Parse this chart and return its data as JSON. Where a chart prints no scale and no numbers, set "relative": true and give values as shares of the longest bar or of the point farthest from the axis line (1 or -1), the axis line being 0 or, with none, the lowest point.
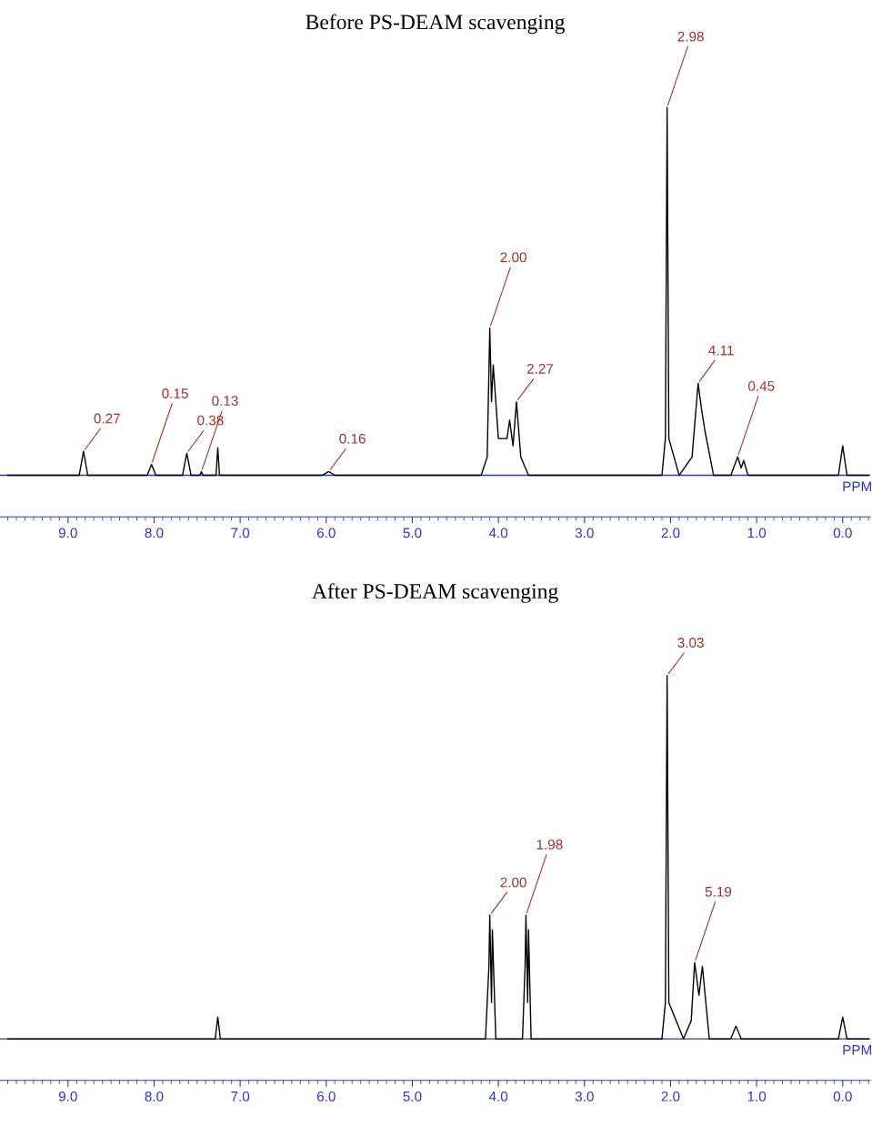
{
  "chart_data": [
    {
      "type": "line",
      "title": "Before PS-DEAM scavenging",
      "xlabel": "PPM",
      "relative": true,
      "xlim": [
        9.79,
        -0.32
      ],
      "xticks": [
        {
          "value": 9,
          "label": "9.0"
        },
        {
          "value": 8,
          "label": "8.0"
        },
        {
          "value": 7,
          "label": "7.0"
        },
        {
          "value": 6,
          "label": "6.0"
        },
        {
          "value": 5,
          "label": "5.0"
        },
        {
          "value": 4,
          "label": "4.0"
        },
        {
          "value": 3,
          "label": "3.0"
        },
        {
          "value": 2,
          "label": "2.0"
        },
        {
          "value": 1,
          "label": "1.0"
        },
        {
          "value": 0,
          "label": "0.0"
        }
      ],
      "series": [
        {
          "color": "#000000",
          "x": [
            9.7,
            8.87,
            8.82,
            8.77,
            8.08,
            8.03,
            7.98,
            7.67,
            7.62,
            7.57,
            7.47,
            7.45,
            7.43,
            7.28,
            7.26,
            7.24,
            6.05,
            5.97,
            5.9,
            5.6,
            4.2,
            4.13,
            4.1,
            4.08,
            4.06,
            4.0,
            3.9,
            3.87,
            3.83,
            3.79,
            3.74,
            3.65,
            2.1,
            2.06,
            2.04,
            2.02,
            1.9,
            1.75,
            1.68,
            1.64,
            1.6,
            1.5,
            1.3,
            1.22,
            1.18,
            1.15,
            1.1,
            0.05,
            0.0,
            -0.05,
            -0.3
          ],
          "values": [
            0,
            0,
            0.065,
            0,
            0,
            0.03,
            0,
            0,
            0.06,
            0,
            0,
            0.01,
            0,
            0,
            0.075,
            0,
            0,
            0.01,
            0,
            0,
            0,
            0.05,
            0.4,
            0.2,
            0.3,
            0.1,
            0.1,
            0.15,
            0.08,
            0.2,
            0.05,
            0,
            0,
            0.1,
            1.0,
            0.1,
            0,
            0.05,
            0.25,
            0.18,
            0.12,
            0,
            0,
            0.05,
            0.02,
            0.04,
            0,
            0,
            0.08,
            0,
            0
          ]
        }
      ],
      "annotations": [
        {
          "text": "0.27",
          "x": 8.82,
          "y": 0.065
        },
        {
          "text": "0.15",
          "x": 8.03,
          "y": 0.03
        },
        {
          "text": "0.38",
          "x": 7.62,
          "y": 0.06
        },
        {
          "text": "0.13",
          "x": 7.45,
          "y": 0.01
        },
        {
          "text": "0.16",
          "x": 5.97,
          "y": 0.01
        },
        {
          "text": "2.00",
          "x": 4.1,
          "y": 0.4
        },
        {
          "text": "2.27",
          "x": 3.79,
          "y": 0.2
        },
        {
          "text": "2.98",
          "x": 2.04,
          "y": 1.0
        },
        {
          "text": "4.11",
          "x": 1.68,
          "y": 0.25
        },
        {
          "text": "0.45",
          "x": 1.22,
          "y": 0.05
        }
      ]
    },
    {
      "type": "line",
      "title": "After PS-DEAM scavenging",
      "xlabel": "PPM",
      "relative": true,
      "xlim": [
        9.79,
        -0.32
      ],
      "xticks": [
        {
          "value": 9,
          "label": "9.0"
        },
        {
          "value": 8,
          "label": "8.0"
        },
        {
          "value": 7,
          "label": "7.0"
        },
        {
          "value": 6,
          "label": "6.0"
        },
        {
          "value": 5,
          "label": "5.0"
        },
        {
          "value": 4,
          "label": "4.0"
        },
        {
          "value": 3,
          "label": "3.0"
        },
        {
          "value": 2,
          "label": "2.0"
        },
        {
          "value": 1,
          "label": "1.0"
        },
        {
          "value": 0,
          "label": "0.0"
        }
      ],
      "series": [
        {
          "color": "#000000",
          "x": [
            9.7,
            7.29,
            7.26,
            7.23,
            4.15,
            4.11,
            4.1,
            4.08,
            4.07,
            4.03,
            3.72,
            3.69,
            3.68,
            3.66,
            3.65,
            3.62,
            2.1,
            2.06,
            2.04,
            2.02,
            1.85,
            1.76,
            1.72,
            1.67,
            1.63,
            1.55,
            1.3,
            1.24,
            1.18,
            0.05,
            0.0,
            -0.05,
            -0.3
          ],
          "values": [
            0,
            0,
            0.06,
            0,
            0,
            0.2,
            0.34,
            0.1,
            0.3,
            0,
            0,
            0.2,
            0.34,
            0.1,
            0.3,
            0,
            0,
            0.1,
            1.0,
            0.1,
            0,
            0.05,
            0.21,
            0.12,
            0.2,
            0,
            0,
            0.035,
            0,
            0,
            0.06,
            0,
            0
          ]
        }
      ],
      "annotations": [
        {
          "text": "2.00",
          "x": 4.1,
          "y": 0.34
        },
        {
          "text": "1.98",
          "x": 3.68,
          "y": 0.34
        },
        {
          "text": "3.03",
          "x": 2.04,
          "y": 1.0
        },
        {
          "text": "5.19",
          "x": 1.72,
          "y": 0.21
        }
      ]
    }
  ]
}
